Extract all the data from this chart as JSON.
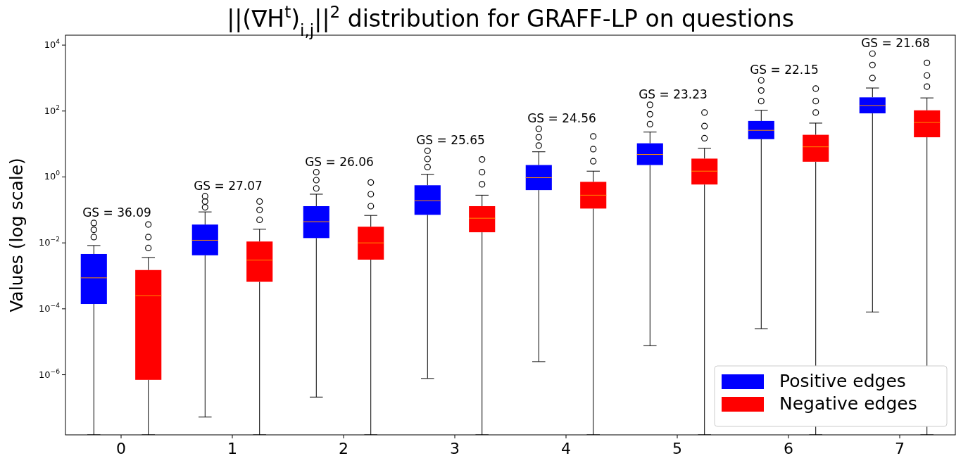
{
  "chart_data": {
    "type": "box",
    "title": "||(∇H$^{t}$)$_{i,j}$||$^{2}$ distribution for GRAFF-LP on questions",
    "ylabel": "Values (log scale)",
    "log": "y",
    "legend": "bottom right",
    "categories": [
      "0",
      "1",
      "2",
      "3",
      "4",
      "5",
      "6",
      "7"
    ],
    "ylim": [
      1.5e-08,
      20000
    ],
    "yticks": [
      {
        "value": 1e-06,
        "label": "10$^{−6}$"
      },
      {
        "value": 0.0001,
        "label": "10$^{−4}$"
      },
      {
        "value": 0.01,
        "label": "10$^{−2}$"
      },
      {
        "value": 1,
        "label": "10$^{0}$"
      },
      {
        "value": 100,
        "label": "10$^{2}$"
      },
      {
        "value": 10000,
        "label": "10$^{4}$"
      }
    ],
    "series": [
      {
        "name": "Positive edges",
        "color": "#0000ff",
        "boxes": [
          {
            "low": 1.5e-08,
            "q1": 0.00014,
            "median": 0.00087,
            "q3": 0.0046,
            "high": 0.0083,
            "outliers": [
              0.015,
              0.025,
              0.04
            ]
          },
          {
            "low": 5.2e-08,
            "q1": 0.0042,
            "median": 0.012,
            "q3": 0.036,
            "high": 0.087,
            "outliers": [
              0.12,
              0.18,
              0.26
            ]
          },
          {
            "low": 2.1e-07,
            "q1": 0.014,
            "median": 0.044,
            "q3": 0.13,
            "high": 0.3,
            "outliers": [
              0.45,
              0.8,
              1.4
            ]
          },
          {
            "low": 7.7e-07,
            "q1": 0.071,
            "median": 0.19,
            "q3": 0.56,
            "high": 1.2,
            "outliers": [
              2,
              3.5,
              6.2
            ]
          },
          {
            "low": 2.5e-06,
            "q1": 0.4,
            "median": 0.95,
            "q3": 2.3,
            "high": 5.8,
            "outliers": [
              9,
              16,
              29
            ]
          },
          {
            "low": 7.6e-06,
            "q1": 2.3,
            "median": 4.8,
            "q3": 10.5,
            "high": 23,
            "outliers": [
              40,
              80,
              155
            ]
          },
          {
            "low": 2.5e-05,
            "q1": 14,
            "median": 26,
            "q3": 50,
            "high": 105,
            "outliers": [
              200,
              420,
              850
            ]
          },
          {
            "low": 8e-05,
            "q1": 85,
            "median": 147,
            "q3": 260,
            "high": 500,
            "outliers": [
              1000,
              2500,
              5500
            ]
          }
        ]
      },
      {
        "name": "Negative edges",
        "color": "#ff0000",
        "boxes": [
          {
            "low": 1.5e-08,
            "q1": 7e-07,
            "median": 0.00025,
            "q3": 0.0015,
            "high": 0.0036,
            "outliers": [
              0.007,
              0.015,
              0.036
            ]
          },
          {
            "low": 1.5e-08,
            "q1": 0.00066,
            "median": 0.003,
            "q3": 0.011,
            "high": 0.026,
            "outliers": [
              0.05,
              0.1,
              0.18
            ]
          },
          {
            "low": 1.5e-08,
            "q1": 0.0031,
            "median": 0.01,
            "q3": 0.031,
            "high": 0.068,
            "outliers": [
              0.13,
              0.3,
              0.68
            ]
          },
          {
            "low": 1.5e-08,
            "q1": 0.021,
            "median": 0.056,
            "q3": 0.13,
            "high": 0.28,
            "outliers": [
              0.6,
              1.4,
              3.4
            ]
          },
          {
            "low": 1.5e-08,
            "q1": 0.11,
            "median": 0.28,
            "q3": 0.71,
            "high": 1.5,
            "outliers": [
              3,
              7,
              17
            ]
          },
          {
            "low": 1.5e-08,
            "q1": 0.59,
            "median": 1.5,
            "q3": 3.6,
            "high": 7.4,
            "outliers": [
              15,
              35,
              90
            ]
          },
          {
            "low": 1.5e-08,
            "q1": 2.9,
            "median": 8.2,
            "q3": 19,
            "high": 43,
            "outliers": [
              90,
              200,
              480
            ]
          },
          {
            "low": 1.5e-08,
            "q1": 16,
            "median": 45,
            "q3": 105,
            "high": 250,
            "outliers": [
              550,
              1200,
              2900
            ]
          }
        ]
      }
    ],
    "annotations": [
      "GS = 36.09",
      "GS = 27.07",
      "GS = 26.06",
      "GS = 25.65",
      "GS = 24.56",
      "GS = 23.23",
      "GS = 22.15",
      "GS = 21.68"
    ]
  }
}
